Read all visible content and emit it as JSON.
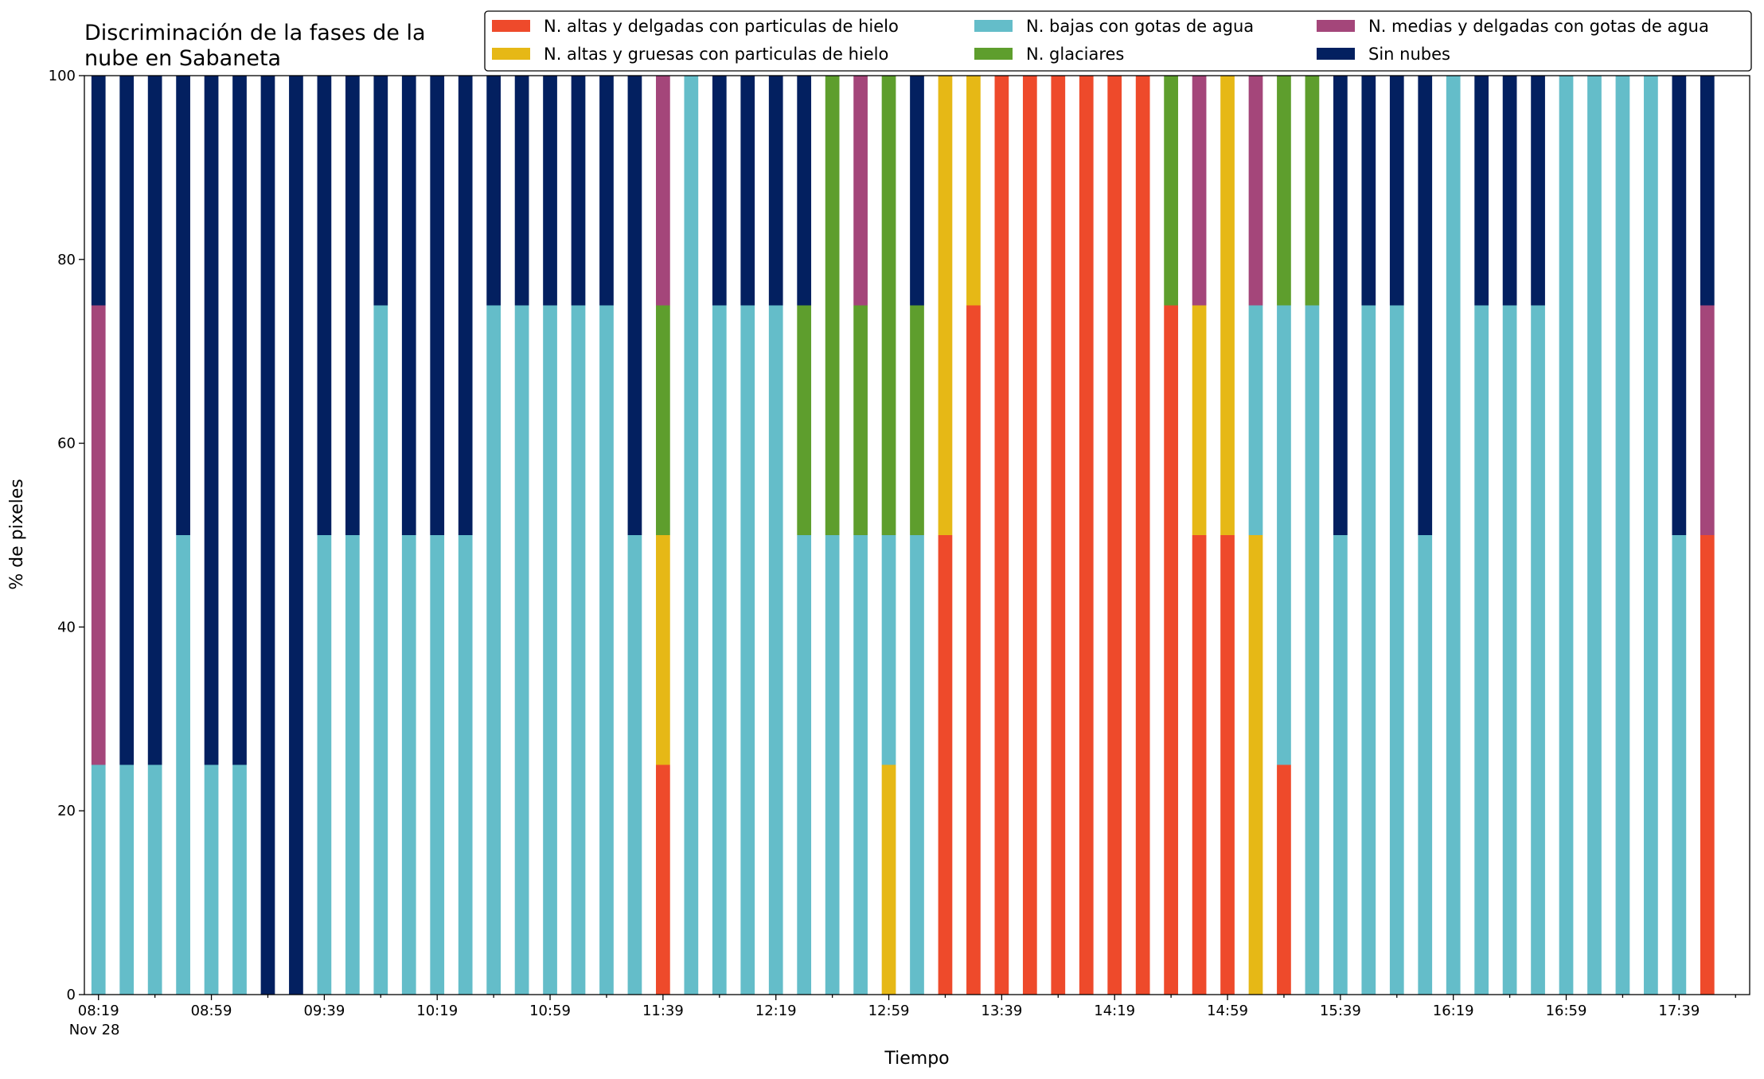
{
  "chart_data": {
    "type": "stacked_bar",
    "title": "Discriminación de la fases de la\nnube en Sabaneta",
    "xlabel": "Tiempo",
    "ylabel": "% de pixeles",
    "x_sublabel": "Nov 28",
    "categories": [
      "08:19",
      null,
      null,
      null,
      "08:59",
      null,
      null,
      null,
      "09:39",
      null,
      null,
      null,
      "10:19",
      null,
      null,
      null,
      "10:59",
      null,
      null,
      null,
      "11:39",
      null,
      null,
      null,
      "12:19",
      null,
      null,
      null,
      "12:59",
      null,
      null,
      null,
      "13:39",
      null,
      null,
      null,
      "14:19",
      null,
      null,
      null,
      "14:59",
      null,
      null,
      null,
      "15:39",
      null,
      null,
      null,
      "16:19",
      null,
      null,
      null,
      "16:59",
      null,
      null,
      null,
      "17:39",
      null
    ],
    "series": [
      {
        "name": "N. altas y delgadas con particulas de hielo",
        "color": "#ee4a2b",
        "values": [
          0,
          0,
          0,
          0,
          0,
          0,
          0,
          0,
          0,
          0,
          0,
          0,
          0,
          0,
          0,
          0,
          0,
          0,
          0,
          0,
          25,
          0,
          0,
          0,
          0,
          0,
          0,
          0,
          0,
          0,
          50,
          75,
          100,
          100,
          100,
          100,
          100,
          100,
          75,
          50,
          50,
          0,
          25,
          0,
          0,
          0,
          0,
          0,
          0,
          0,
          0,
          0,
          0,
          0,
          0,
          0,
          0,
          50
        ]
      },
      {
        "name": "N. altas y gruesas con particulas de hielo",
        "color": "#e6b816",
        "values": [
          0,
          0,
          0,
          0,
          0,
          0,
          0,
          0,
          0,
          0,
          0,
          0,
          0,
          0,
          0,
          0,
          0,
          0,
          0,
          0,
          25,
          0,
          0,
          0,
          0,
          0,
          0,
          0,
          25,
          0,
          50,
          25,
          0,
          0,
          0,
          0,
          0,
          0,
          0,
          25,
          50,
          50,
          0,
          0,
          0,
          0,
          0,
          0,
          0,
          0,
          0,
          0,
          0,
          0,
          0,
          0,
          0,
          0
        ]
      },
      {
        "name": "N. bajas con gotas de agua",
        "color": "#64bdc9",
        "values": [
          25,
          25,
          25,
          50,
          25,
          25,
          0,
          0,
          50,
          50,
          75,
          50,
          50,
          50,
          75,
          75,
          75,
          75,
          75,
          50,
          0,
          100,
          75,
          75,
          75,
          50,
          50,
          50,
          25,
          50,
          0,
          0,
          0,
          0,
          0,
          0,
          0,
          0,
          0,
          0,
          0,
          25,
          50,
          75,
          50,
          75,
          75,
          50,
          100,
          75,
          75,
          75,
          100,
          100,
          100,
          100,
          50,
          0
        ]
      },
      {
        "name": "N. glaciares",
        "color": "#5e9e2d",
        "values": [
          0,
          0,
          0,
          0,
          0,
          0,
          0,
          0,
          0,
          0,
          0,
          0,
          0,
          0,
          0,
          0,
          0,
          0,
          0,
          0,
          25,
          0,
          0,
          0,
          0,
          25,
          50,
          25,
          50,
          25,
          0,
          0,
          0,
          0,
          0,
          0,
          0,
          0,
          25,
          0,
          0,
          0,
          25,
          25,
          0,
          0,
          0,
          0,
          0,
          0,
          0,
          0,
          0,
          0,
          0,
          0,
          0,
          0
        ]
      },
      {
        "name": "N. medias y delgadas con gotas de agua",
        "color": "#a4467a",
        "values": [
          50,
          0,
          0,
          0,
          0,
          0,
          0,
          0,
          0,
          0,
          0,
          0,
          0,
          0,
          0,
          0,
          0,
          0,
          0,
          0,
          25,
          0,
          0,
          0,
          0,
          0,
          0,
          25,
          0,
          0,
          0,
          0,
          0,
          0,
          0,
          0,
          0,
          0,
          0,
          25,
          0,
          25,
          0,
          0,
          0,
          0,
          0,
          0,
          0,
          0,
          0,
          0,
          0,
          0,
          0,
          0,
          0,
          25
        ]
      },
      {
        "name": "Sin nubes",
        "color": "#032060",
        "values": [
          25,
          75,
          75,
          50,
          75,
          75,
          100,
          100,
          50,
          50,
          25,
          50,
          50,
          50,
          25,
          25,
          25,
          25,
          25,
          50,
          0,
          0,
          25,
          25,
          25,
          25,
          0,
          0,
          0,
          25,
          0,
          0,
          0,
          0,
          0,
          0,
          0,
          0,
          0,
          0,
          0,
          0,
          0,
          0,
          50,
          25,
          25,
          50,
          0,
          25,
          25,
          25,
          0,
          0,
          0,
          0,
          50,
          25
        ]
      }
    ],
    "ylim": [
      0,
      100
    ],
    "yticks": [
      0,
      20,
      40,
      60,
      80,
      100
    ],
    "grid": false,
    "legend": "upper right"
  }
}
